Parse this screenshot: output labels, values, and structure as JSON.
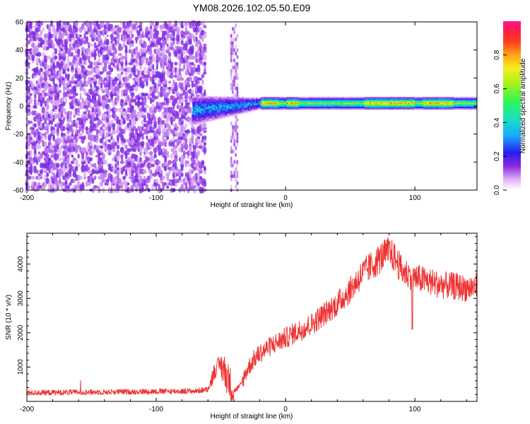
{
  "title": "YM08.2026.102.05.50.E09",
  "chart_data": [
    {
      "type": "heatmap",
      "xlabel": "Height of straight line (km)",
      "ylabel": "Frequency (Hz)",
      "xlim": [
        -200,
        148
      ],
      "ylim": [
        -60,
        60
      ],
      "xticks": [
        -200,
        -100,
        0,
        100
      ],
      "yticks": [
        60,
        40,
        20,
        0,
        -20,
        -40,
        -60
      ],
      "colorbar": {
        "label": "Normalized spectral amplitude",
        "range": [
          0,
          1
        ],
        "ticks": [
          0.0,
          0.2,
          0.4,
          0.6,
          0.8
        ]
      },
      "features": {
        "noise_region_x": [
          -200,
          -62
        ],
        "noise_strip_x": [
          -42,
          -37
        ],
        "signal_line_freq_hz": 2,
        "signal_start_x": -72
      }
    },
    {
      "type": "line",
      "xlabel": "Height of straight line (km)",
      "ylabel": "SNR (10 * v/v)",
      "xlim": [
        -200,
        148
      ],
      "ylim": [
        0,
        4900
      ],
      "xticks": [
        -200,
        -100,
        0,
        100
      ],
      "yticks": [
        1000,
        2000,
        3000,
        4000
      ],
      "series": [
        {
          "name": "SNR",
          "color": "#ee3333",
          "x": [
            -200,
            -150,
            -100,
            -70,
            -60,
            -55,
            -50,
            -45,
            -40,
            -35,
            -30,
            -25,
            -20,
            -10,
            0,
            10,
            20,
            30,
            40,
            50,
            60,
            70,
            75,
            80,
            85,
            90,
            100,
            110,
            120,
            130,
            140,
            148
          ],
          "y": [
            250,
            270,
            290,
            300,
            350,
            900,
            1100,
            700,
            300,
            450,
            900,
            1200,
            1400,
            1650,
            1850,
            2050,
            2250,
            2550,
            2850,
            3250,
            3750,
            4050,
            4250,
            4350,
            4150,
            3800,
            3600,
            3500,
            3400,
            3350,
            3300,
            3350
          ]
        }
      ]
    }
  ]
}
